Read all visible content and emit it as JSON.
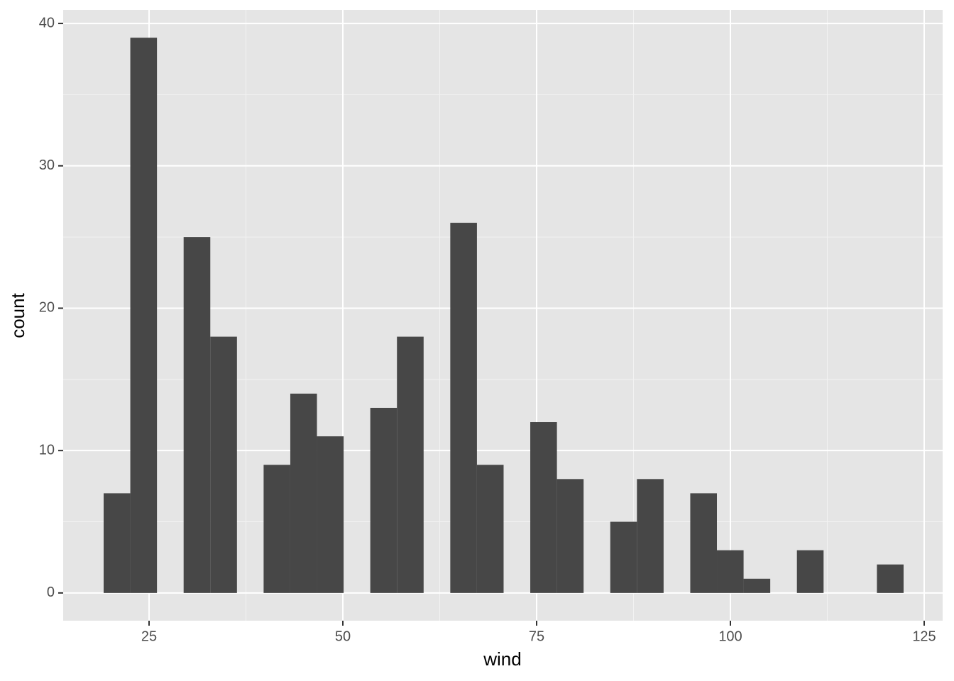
{
  "chart_data": {
    "type": "histogram",
    "xlabel": "wind",
    "ylabel": "count",
    "bins": [
      19.14,
      22.58,
      26.02,
      29.46,
      32.9,
      36.34,
      39.78,
      43.22,
      46.66,
      50.1,
      53.54,
      56.98,
      60.42,
      63.86,
      67.3,
      70.74,
      74.18,
      77.62,
      81.06,
      84.5,
      87.94,
      91.38,
      94.82,
      98.26,
      101.7,
      105.14,
      108.58,
      112.02,
      115.46,
      118.9,
      122.34
    ],
    "values": [
      7,
      39,
      0,
      25,
      18,
      0,
      9,
      14,
      11,
      0,
      13,
      18,
      0,
      26,
      9,
      0,
      12,
      8,
      0,
      5,
      8,
      0,
      7,
      3,
      1,
      0,
      3,
      0,
      0,
      2
    ],
    "color": "#474747",
    "xlim": [
      13.92,
      127.38
    ],
    "xticks": [
      25,
      50,
      75,
      100,
      125
    ],
    "ylim": [
      -1.95,
      40.95
    ],
    "yticks": [
      0,
      10,
      20,
      30,
      40
    ],
    "x_minor_grid": [
      37.5,
      62.5,
      87.5,
      112.5
    ],
    "y_minor_grid": [
      5,
      15,
      25,
      35
    ],
    "grid": true
  }
}
